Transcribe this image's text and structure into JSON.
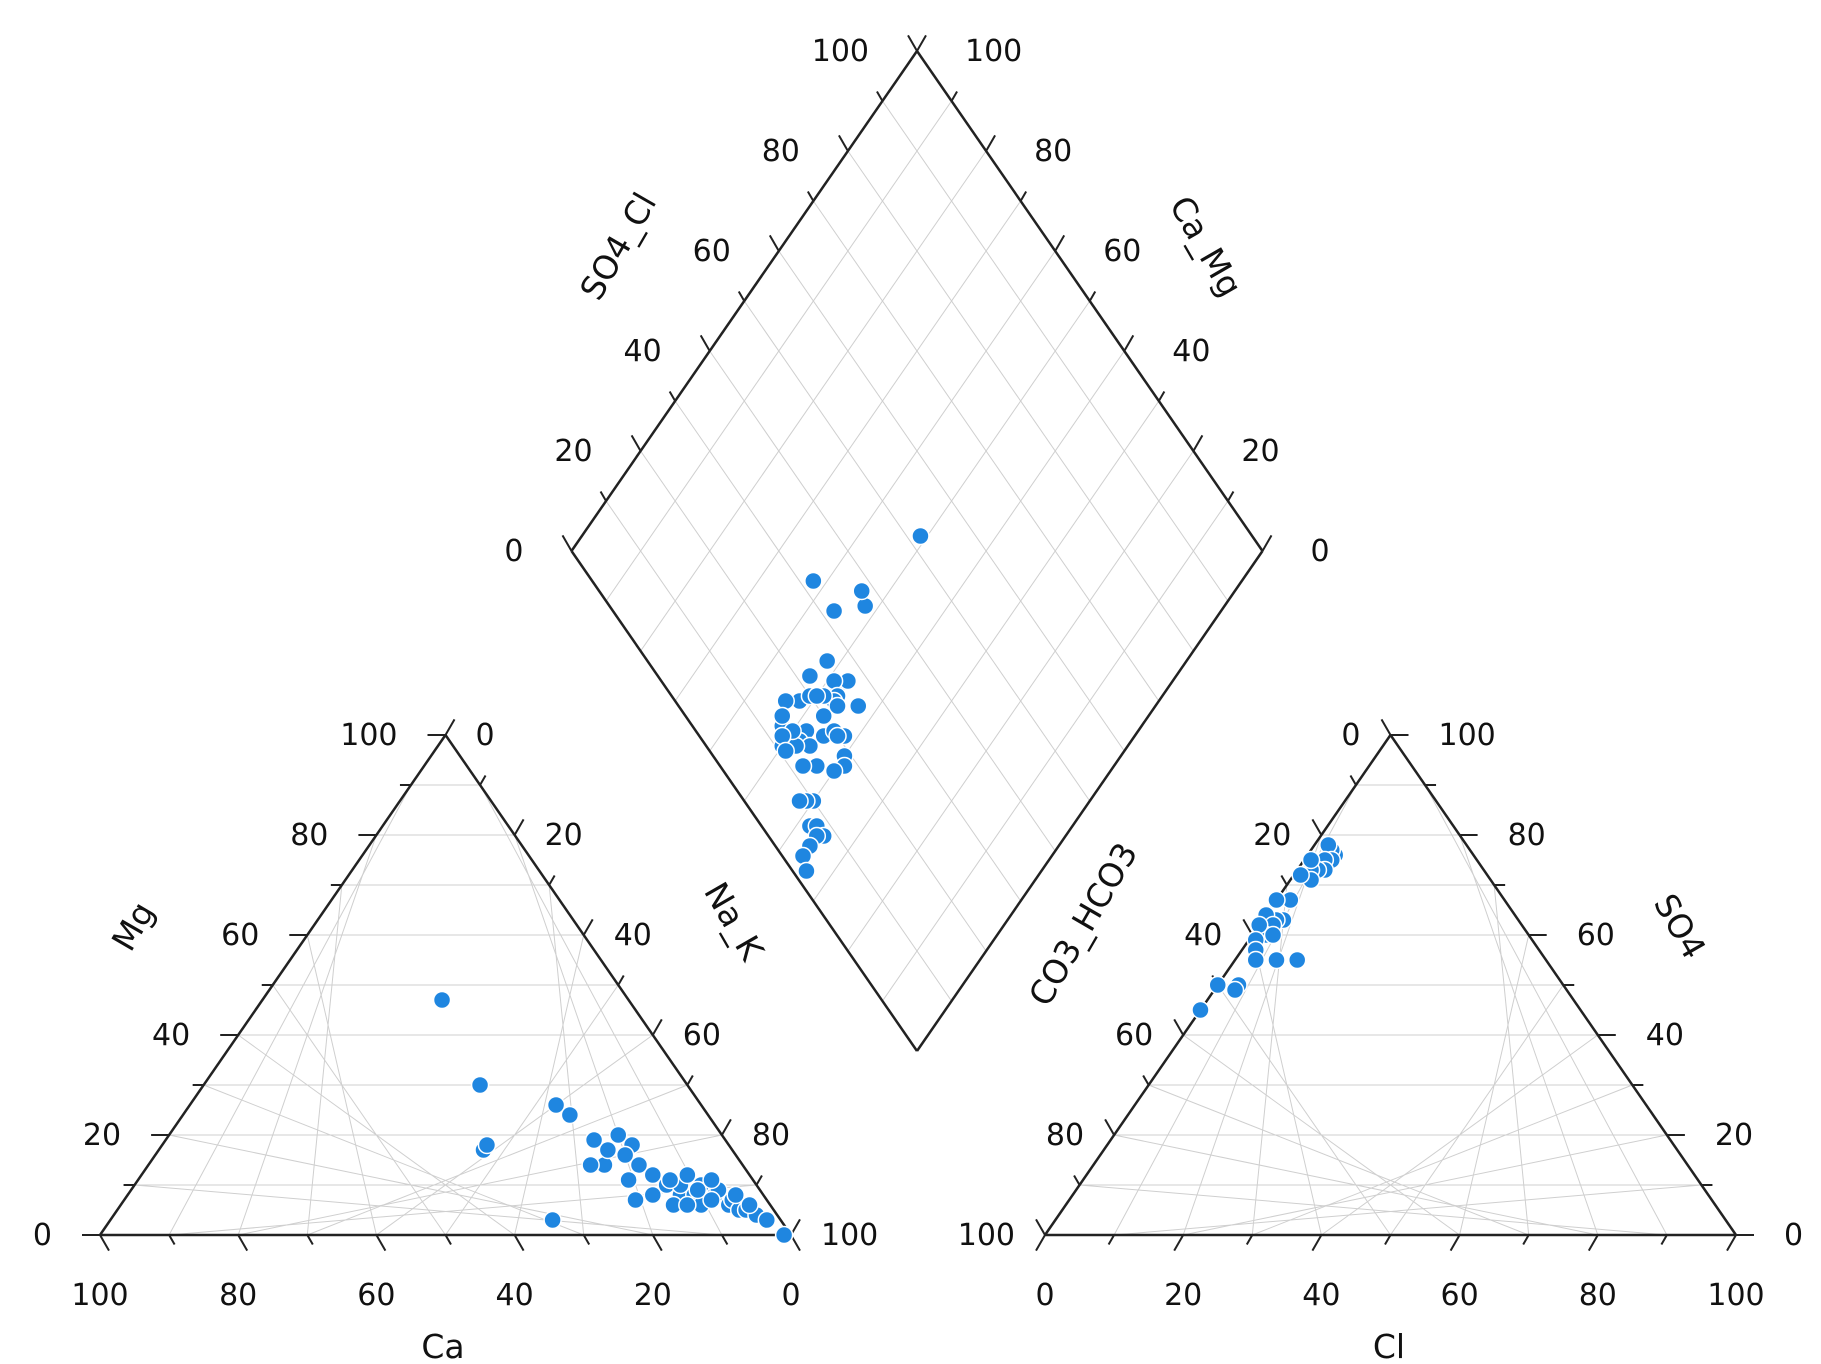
{
  "chart_data": {
    "type": "scatter",
    "title": "",
    "colors": {
      "point": "#1f86e0",
      "point_stroke": "#ffffff",
      "axis": "#222222",
      "grid": "#cfcfcf"
    },
    "tick_labels": [
      "0",
      "20",
      "40",
      "60",
      "80",
      "100"
    ],
    "cation_triangle": {
      "axis_labels": {
        "left": "Mg",
        "right": "Na_K",
        "bottom": "Ca"
      },
      "points_Ca_Mg_NaK": [
        [
          27,
          47,
          26
        ],
        [
          30,
          30,
          40
        ],
        [
          21,
          26,
          53
        ],
        [
          20,
          24,
          56
        ],
        [
          36,
          17,
          47
        ],
        [
          35,
          18,
          47
        ],
        [
          33,
          3,
          64
        ],
        [
          20,
          14,
          66
        ],
        [
          22,
          14,
          64
        ],
        [
          18,
          17,
          65
        ],
        [
          14,
          18,
          68
        ],
        [
          16,
          16,
          68
        ],
        [
          18,
          11,
          71
        ],
        [
          19,
          7,
          74
        ],
        [
          15,
          14,
          71
        ],
        [
          14,
          12,
          74
        ],
        [
          13,
          10,
          77
        ],
        [
          12,
          8,
          80
        ],
        [
          10,
          8,
          82
        ],
        [
          10,
          6,
          84
        ],
        [
          8,
          10,
          82
        ],
        [
          9,
          9,
          82
        ],
        [
          7,
          8,
          85
        ],
        [
          6,
          9,
          85
        ],
        [
          6,
          6,
          88
        ],
        [
          5,
          7,
          88
        ],
        [
          5,
          5,
          90
        ],
        [
          4,
          5,
          91
        ],
        [
          3,
          4,
          93
        ],
        [
          2,
          3,
          95
        ],
        [
          1,
          0,
          99
        ],
        [
          16,
          8,
          76
        ],
        [
          14,
          6,
          80
        ],
        [
          12,
          6,
          82
        ],
        [
          11,
          10,
          79
        ],
        [
          15,
          20,
          65
        ],
        [
          19,
          19,
          62
        ],
        [
          9,
          12,
          79
        ],
        [
          8,
          7,
          85
        ],
        [
          4,
          8,
          88
        ],
        [
          3,
          6,
          91
        ],
        [
          6,
          11,
          83
        ],
        [
          12,
          11,
          77
        ]
      ]
    },
    "anion_triangle": {
      "axis_labels": {
        "left": "CO3_HCO3",
        "right": "SO4",
        "bottom": "Cl"
      },
      "points_CO3HCO3_Cl_SO4": [
        [
          20,
          4,
          76
        ],
        [
          20,
          3,
          77
        ],
        [
          20,
          2,
          78
        ],
        [
          21,
          4,
          75
        ],
        [
          22,
          3,
          75
        ],
        [
          23,
          4,
          73
        ],
        [
          24,
          3,
          73
        ],
        [
          25,
          2,
          73
        ],
        [
          24,
          1,
          75
        ],
        [
          26,
          3,
          71
        ],
        [
          27,
          1,
          72
        ],
        [
          31,
          2,
          67
        ],
        [
          33,
          0,
          67
        ],
        [
          34,
          3,
          63
        ],
        [
          35,
          2,
          63
        ],
        [
          36,
          0,
          64
        ],
        [
          36,
          2,
          62
        ],
        [
          38,
          2,
          60
        ],
        [
          38,
          0,
          62
        ],
        [
          40,
          1,
          59
        ],
        [
          39,
          6,
          55
        ],
        [
          41,
          2,
          57
        ],
        [
          42,
          3,
          55
        ],
        [
          37,
          3,
          60
        ],
        [
          47,
          3,
          50
        ],
        [
          48,
          3,
          49
        ],
        [
          50,
          0,
          50
        ],
        [
          55,
          0,
          45
        ],
        [
          36,
          9,
          55
        ]
      ]
    },
    "diamond": {
      "axis_labels": {
        "upper_left": "SO4_Cl",
        "upper_right": "Ca_Mg"
      },
      "points_SO4Cl_CaMg": [
        [
          51,
          52
        ],
        [
          52,
          37
        ],
        [
          54,
          38
        ],
        [
          56,
          32
        ],
        [
          62,
          32
        ],
        [
          48,
          25
        ],
        [
          47,
          27
        ],
        [
          49,
          25
        ],
        [
          47,
          24
        ],
        [
          47,
          23
        ],
        [
          52,
          26
        ],
        [
          53,
          22
        ],
        [
          49,
          22
        ],
        [
          46,
          23
        ],
        [
          52,
          18
        ],
        [
          51,
          20
        ],
        [
          50,
          21
        ],
        [
          54,
          16
        ],
        [
          48,
          16
        ],
        [
          52,
          13
        ],
        [
          50,
          11
        ],
        [
          48,
          14
        ],
        [
          46,
          15
        ],
        [
          48,
          13
        ],
        [
          50,
          14
        ],
        [
          51,
          12
        ],
        [
          49,
          11
        ],
        [
          53,
          14
        ],
        [
          45,
          18
        ],
        [
          44,
          20
        ],
        [
          42,
          21
        ],
        [
          43,
          20
        ],
        [
          40,
          19
        ],
        [
          39,
          18
        ],
        [
          40,
          16
        ],
        [
          43,
          14
        ],
        [
          45,
          12
        ],
        [
          40,
          10
        ],
        [
          41,
          9
        ],
        [
          42,
          8
        ],
        [
          38,
          7
        ],
        [
          37,
          8
        ],
        [
          35,
          8
        ],
        [
          36,
          7
        ],
        [
          36,
          5
        ],
        [
          36,
          3
        ],
        [
          34,
          2
        ],
        [
          43,
          26
        ],
        [
          47,
          20
        ]
      ]
    }
  }
}
